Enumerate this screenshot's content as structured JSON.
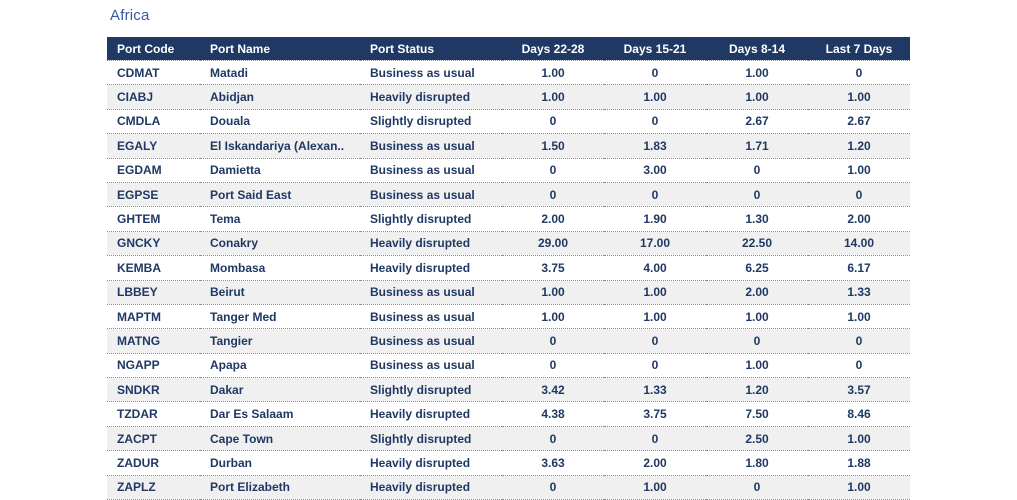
{
  "title": "Africa",
  "table": {
    "columns": [
      "Port Code",
      "Port Name",
      "Port Status",
      "Days 22-28",
      "Days 15-21",
      "Days 8-14",
      "Last 7 Days"
    ],
    "rows": [
      [
        "CDMAT",
        "Matadi",
        "Business as usual",
        "1.00",
        "0",
        "1.00",
        "0"
      ],
      [
        "CIABJ",
        "Abidjan",
        "Heavily disrupted",
        "1.00",
        "1.00",
        "1.00",
        "1.00"
      ],
      [
        "CMDLA",
        "Douala",
        "Slightly disrupted",
        "0",
        "0",
        "2.67",
        "2.67"
      ],
      [
        "EGALY",
        "El Iskandariya (Alexan..",
        "Business as usual",
        "1.50",
        "1.83",
        "1.71",
        "1.20"
      ],
      [
        "EGDAM",
        "Damietta",
        "Business as usual",
        "0",
        "3.00",
        "0",
        "1.00"
      ],
      [
        "EGPSE",
        "Port Said East",
        "Business as usual",
        "0",
        "0",
        "0",
        "0"
      ],
      [
        "GHTEM",
        "Tema",
        "Slightly disrupted",
        "2.00",
        "1.90",
        "1.30",
        "2.00"
      ],
      [
        "GNCKY",
        "Conakry",
        "Heavily disrupted",
        "29.00",
        "17.00",
        "22.50",
        "14.00"
      ],
      [
        "KEMBA",
        "Mombasa",
        "Heavily disrupted",
        "3.75",
        "4.00",
        "6.25",
        "6.17"
      ],
      [
        "LBBEY",
        "Beirut",
        "Business as usual",
        "1.00",
        "1.00",
        "2.00",
        "1.33"
      ],
      [
        "MAPTM",
        "Tanger Med",
        "Business as usual",
        "1.00",
        "1.00",
        "1.00",
        "1.00"
      ],
      [
        "MATNG",
        "Tangier",
        "Business as usual",
        "0",
        "0",
        "0",
        "0"
      ],
      [
        "NGAPP",
        "Apapa",
        "Business as usual",
        "0",
        "0",
        "1.00",
        "0"
      ],
      [
        "SNDKR",
        "Dakar",
        "Slightly disrupted",
        "3.42",
        "1.33",
        "1.20",
        "3.57"
      ],
      [
        "TZDAR",
        "Dar Es Salaam",
        "Heavily disrupted",
        "4.38",
        "3.75",
        "7.50",
        "8.46"
      ],
      [
        "ZACPT",
        "Cape Town",
        "Slightly disrupted",
        "0",
        "0",
        "2.50",
        "1.00"
      ],
      [
        "ZADUR",
        "Durban",
        "Heavily disrupted",
        "3.63",
        "2.00",
        "1.80",
        "1.88"
      ],
      [
        "ZAPLZ",
        "Port Elizabeth",
        "Heavily disrupted",
        "0",
        "1.00",
        "0",
        "1.00"
      ]
    ]
  },
  "colors": {
    "header_bg": "#1f3864",
    "header_text": "#ffffff",
    "cell_text": "#1f3864",
    "row_alt_bg": "#f0f0f0",
    "title_text": "#35599e",
    "divider": "#8c8c8c"
  }
}
